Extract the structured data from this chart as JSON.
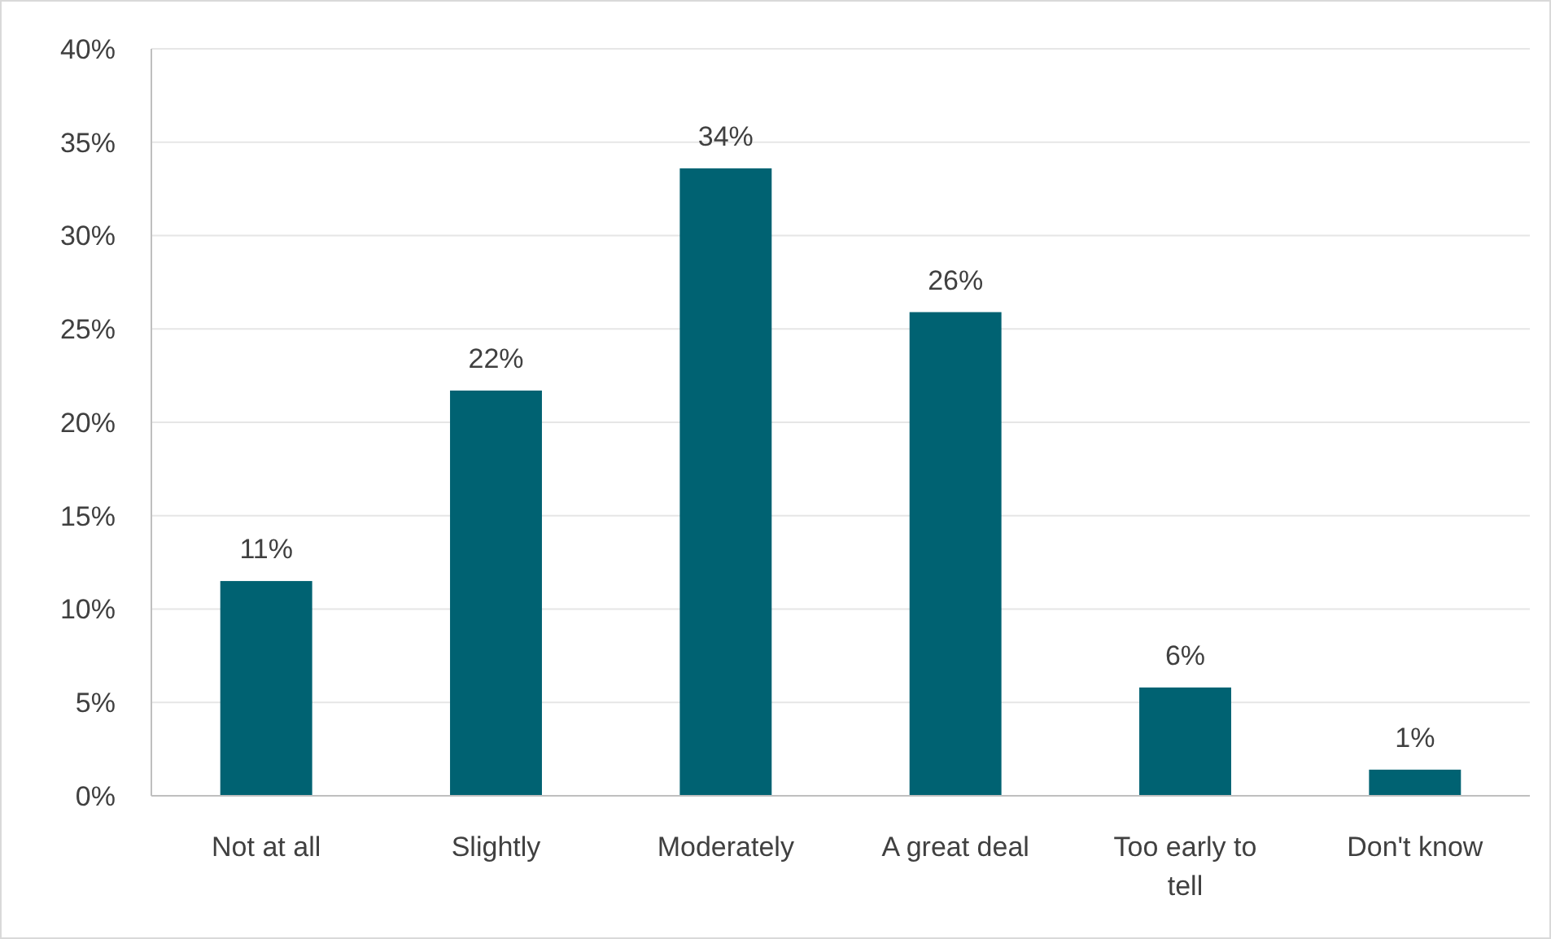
{
  "chart_data": {
    "type": "bar",
    "categories": [
      "Not at all",
      "Slightly",
      "Moderately",
      "A great deal",
      "Too early to tell",
      "Don't know"
    ],
    "values": [
      11.5,
      21.7,
      33.6,
      25.9,
      5.8,
      1.4
    ],
    "value_labels": [
      "11%",
      "22%",
      "34%",
      "26%",
      "6%",
      "1%"
    ],
    "color": "#006272",
    "ylim": [
      0,
      40
    ],
    "yticks": [
      {
        "value": 0,
        "label": "0%"
      },
      {
        "value": 5,
        "label": "5%"
      },
      {
        "value": 10,
        "label": "10%"
      },
      {
        "value": 15,
        "label": "15%"
      },
      {
        "value": 20,
        "label": "20%"
      },
      {
        "value": 25,
        "label": "25%"
      },
      {
        "value": 30,
        "label": "30%"
      },
      {
        "value": 35,
        "label": "35%"
      },
      {
        "value": 40,
        "label": "40%"
      }
    ],
    "grid": "y"
  }
}
